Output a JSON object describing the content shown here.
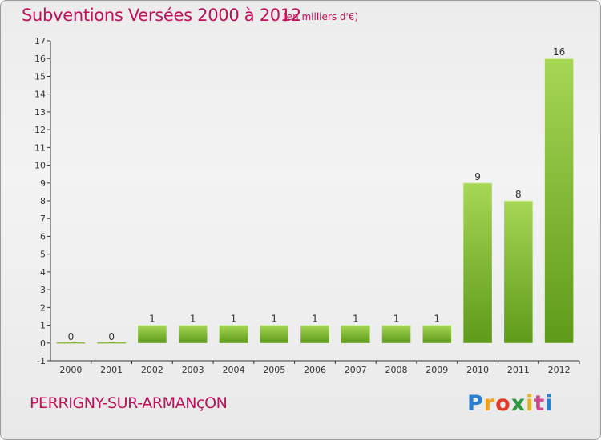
{
  "header": {
    "title": "Subventions Versées 2000 à 2012",
    "subtitle": "(en milliers d'€)"
  },
  "footer": {
    "commune": "PERRIGNY-SUR-ARMANçON",
    "logo_letters": [
      "P",
      "r",
      "o",
      "x",
      "i",
      "t",
      "i"
    ]
  },
  "chart_data": {
    "type": "bar",
    "title": "Subventions Versées 2000 à 2012",
    "subtitle": "(en milliers d'€)",
    "categories": [
      "2000",
      "2001",
      "2002",
      "2003",
      "2004",
      "2005",
      "2006",
      "2007",
      "2008",
      "2009",
      "2010",
      "2011",
      "2012"
    ],
    "values": [
      0,
      0,
      1,
      1,
      1,
      1,
      1,
      1,
      1,
      1,
      9,
      8,
      16
    ],
    "value_labels": [
      "0",
      "0",
      "1",
      "1",
      "1",
      "1",
      "1",
      "1",
      "1",
      "1",
      "9",
      "8",
      "16"
    ],
    "ylim": [
      -1,
      17
    ],
    "yticks": [
      -1,
      0,
      1,
      2,
      3,
      4,
      5,
      6,
      7,
      8,
      9,
      10,
      11,
      12,
      13,
      14,
      15,
      16,
      17
    ],
    "grid": false,
    "colors": {
      "bar_top": "#a6d655",
      "bar_bottom": "#5f9a1a",
      "axis": "#333333"
    }
  }
}
